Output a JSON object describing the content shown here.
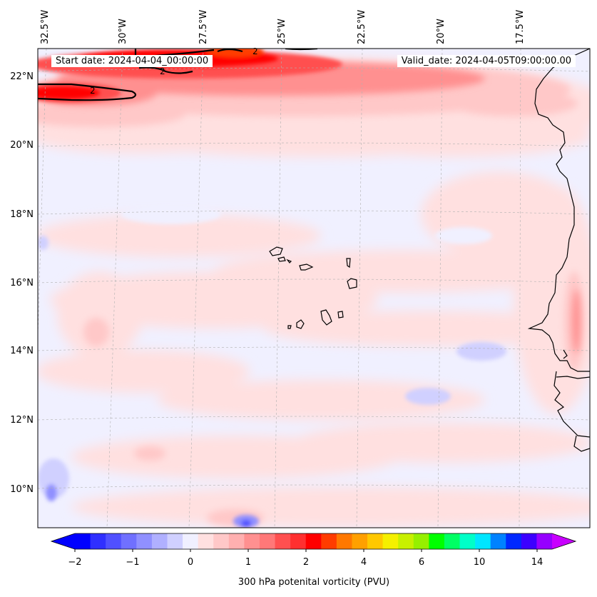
{
  "map": {
    "type": "filled-contour",
    "projection": "lambert-conformal",
    "region": "Eastern Tropical Atlantic / Cape Verde / West Africa coast",
    "variable": "300 hPa potenital vorticity (PVU)",
    "start_label": "Start date: 2024-04-04_00:00:00",
    "valid_label": "Valid_date: 2024-04-05T09:00:00.00",
    "longitude_labels": [
      "32.5°W",
      "30°W",
      "27.5°W",
      "25°W",
      "22.5°W",
      "20°W",
      "17.5°W"
    ],
    "latitude_labels": [
      "22°N",
      "20°N",
      "18°N",
      "16°N",
      "14°N",
      "12°N",
      "10°N"
    ],
    "contour_labels": [
      "2",
      "2",
      "2"
    ],
    "colors": {
      "coastline": "#000000",
      "gridline": "#b0b0b0",
      "contour_line": "#000000"
    }
  },
  "colorbar": {
    "ticks": [
      "−2",
      "−1",
      "0",
      "1",
      "2",
      "4",
      "6",
      "10",
      "14"
    ],
    "colors": [
      "#0000ff",
      "#2f2fff",
      "#5050ff",
      "#7070ff",
      "#9090ff",
      "#b0b0ff",
      "#d0d0ff",
      "#f0f0ff",
      "#ffe0e0",
      "#ffc8c8",
      "#ffb0b0",
      "#ff9090",
      "#ff7878",
      "#ff5050",
      "#ff3030",
      "#ff0000",
      "#ff3c00",
      "#ff7800",
      "#ffa000",
      "#ffc800",
      "#f5f000",
      "#c8f000",
      "#96f000",
      "#00ff00",
      "#00ff64",
      "#00ffc8",
      "#00e6ff",
      "#0082ff",
      "#0028ff",
      "#3c00ff",
      "#9600ff"
    ],
    "under_color": "#0000ff",
    "over_color": "#c800ff"
  }
}
